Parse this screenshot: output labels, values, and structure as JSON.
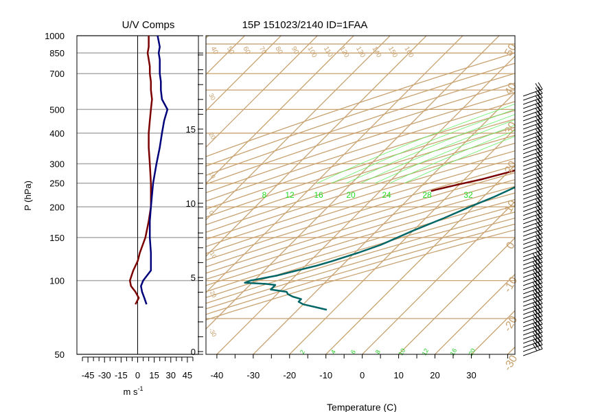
{
  "chart_data": [
    {
      "type": "line",
      "title": "U/V Comps",
      "xlabel": "m s",
      "xlabel_exponent": "-1",
      "ylabel": "P (hPa)",
      "xlim": [
        -55,
        55
      ],
      "x_tick_labels": [
        "-45",
        "-30",
        "-15",
        "0",
        "15",
        "30",
        "45"
      ],
      "x_ticks": [
        -45,
        -30,
        -15,
        0,
        15,
        30,
        45
      ],
      "pressure_ticks": [
        50,
        100,
        150,
        200,
        250,
        300,
        400,
        500,
        700,
        850,
        1000
      ],
      "pressure_tick_labels": [
        "50",
        "100",
        "150",
        "200",
        "250",
        "300",
        "400",
        "500",
        "700",
        "850",
        "1000"
      ],
      "grid": "horizontal at pressure ticks",
      "series": [
        {
          "color": "#7a0000",
          "p": [
            1000,
            950,
            900,
            850,
            800,
            750,
            700,
            650,
            600,
            550,
            500,
            450,
            400,
            350,
            300,
            250,
            200,
            175,
            150,
            130,
            120,
            110,
            100,
            95,
            90,
            85,
            80
          ],
          "values": [
            10,
            10,
            10,
            9,
            10,
            11,
            11,
            12,
            12,
            13,
            12,
            11,
            10,
            10,
            11,
            12,
            12,
            10,
            7,
            2,
            0,
            -4,
            -7,
            -6,
            -2,
            1,
            -2
          ]
        },
        {
          "color": "#00007a",
          "p": [
            1000,
            950,
            900,
            850,
            800,
            750,
            700,
            650,
            600,
            550,
            500,
            450,
            400,
            350,
            300,
            250,
            200,
            175,
            150,
            130,
            120,
            110,
            100,
            95,
            90,
            85,
            80
          ],
          "values": [
            18,
            19,
            20,
            19,
            20,
            20,
            20,
            21,
            21,
            22,
            27,
            24,
            22,
            20,
            17,
            14,
            12,
            11,
            11,
            12,
            12,
            12,
            5,
            3,
            4,
            6,
            8
          ]
        }
      ]
    },
    {
      "type": "line",
      "title": "15P 151023/2140 ID=1FAA",
      "xlabel": "Temperature (C)",
      "xlim": [
        -43,
        42
      ],
      "x_ticks": [
        -40,
        -30,
        -20,
        -10,
        0,
        10,
        20,
        30
      ],
      "x_tick_labels": [
        "-40",
        "-30",
        "-20",
        "-10",
        "0",
        "10",
        "20",
        "30"
      ],
      "height_ticks_km": [
        0,
        5,
        10,
        15
      ],
      "height_tick_labels": [
        "0",
        "5",
        "10",
        "15"
      ],
      "pressure_range": [
        1000,
        50
      ],
      "isotherm_labels": [
        "40",
        "50",
        "60",
        "70",
        "80",
        "90",
        "100",
        "110",
        "120",
        "130",
        "140",
        "150",
        "160"
      ],
      "dry_adiabat_labels": [
        "50",
        "40",
        "30",
        "20",
        "10",
        "0",
        "-10",
        "-20",
        "-30"
      ],
      "moist_labels": [
        "8",
        "12",
        "16",
        "20",
        "24",
        "28",
        "32"
      ],
      "mixing_ratio_labels": [
        "2",
        "4",
        "6",
        "8",
        "10",
        "12",
        "16",
        "20"
      ],
      "series": [
        {
          "name": "",
          "color": "#7a0000",
          "p": [
            1000,
            960,
            930,
            900,
            870,
            840,
            810,
            780,
            750,
            720,
            690,
            660,
            630,
            600,
            570,
            540,
            510,
            480,
            450,
            420,
            400,
            380,
            360,
            340,
            320,
            300,
            290,
            280,
            270,
            260,
            255,
            250,
            245,
            240,
            235,
            232
          ],
          "values": [
            25,
            24,
            23,
            22,
            22,
            21,
            21,
            20,
            20,
            19,
            18,
            17,
            17,
            16,
            15,
            14,
            13,
            13,
            12,
            10,
            9,
            7,
            5,
            2,
            -1,
            -5,
            -7,
            -9,
            -12,
            -15,
            -17,
            -19,
            -21,
            -23,
            -25,
            -26
          ]
        },
        {
          "name": "",
          "color": "#006666",
          "p": [
            1000,
            960,
            930,
            900,
            870,
            840,
            810,
            780,
            750,
            720,
            690,
            660,
            630,
            600,
            570,
            540,
            510,
            480,
            450,
            420,
            400,
            380,
            360,
            340,
            320,
            300,
            280,
            260,
            240,
            220,
            200,
            180,
            160,
            140,
            130,
            120,
            115,
            110,
            105,
            100,
            98,
            97,
            96,
            95,
            92,
            90,
            88,
            86,
            84,
            82,
            80,
            78,
            76
          ],
          "values": [
            26,
            25,
            25,
            24,
            24,
            23,
            23,
            22,
            22,
            22,
            21,
            20,
            20,
            19,
            18,
            17,
            16,
            16,
            15,
            14,
            13,
            12,
            11,
            9,
            7,
            5,
            2,
            -1,
            -4,
            -7,
            -11,
            -15,
            -20,
            -25,
            -29,
            -34,
            -37,
            -41,
            -45,
            -51,
            -52,
            -46,
            -43,
            -43,
            -43,
            -38,
            -37,
            -35,
            -32,
            -32,
            -30,
            -26,
            -22
          ]
        }
      ]
    }
  ]
}
